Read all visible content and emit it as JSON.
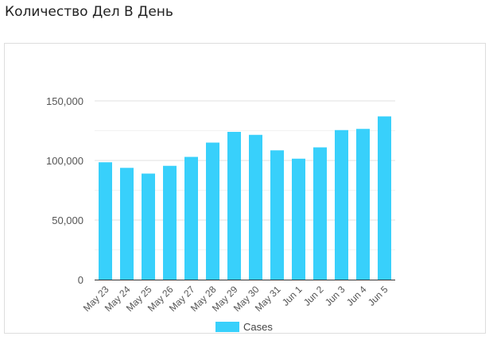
{
  "page": {
    "title": "Количество Дел В День"
  },
  "colors": {
    "bar": "#38d0fb",
    "grid_major": "#e2e2e2",
    "grid_minor": "#f2f2f2",
    "axis": "#333333"
  },
  "chart_data": {
    "type": "bar",
    "title": "",
    "xlabel": "",
    "ylabel": "",
    "categories": [
      "May 23",
      "May 24",
      "May 25",
      "May 26",
      "May 27",
      "May 28",
      "May 29",
      "May 30",
      "May 31",
      "Jun 1",
      "Jun 2",
      "Jun 3",
      "Jun 4",
      "Jun 5"
    ],
    "series": [
      {
        "name": "Cases",
        "values": [
          98500,
          93800,
          89000,
          95500,
          103000,
          115000,
          124000,
          121500,
          108500,
          101500,
          111000,
          125500,
          126500,
          137000
        ]
      }
    ],
    "ylim": [
      0,
      150000
    ],
    "yticks": [
      {
        "value": 0,
        "label": "0"
      },
      {
        "value": 50000,
        "label": "50,000"
      },
      {
        "value": 100000,
        "label": "100,000"
      },
      {
        "value": 150000,
        "label": "150,000"
      }
    ],
    "minor_grid": [
      25000,
      75000,
      125000
    ],
    "grid": true,
    "legend_position": "bottom"
  }
}
